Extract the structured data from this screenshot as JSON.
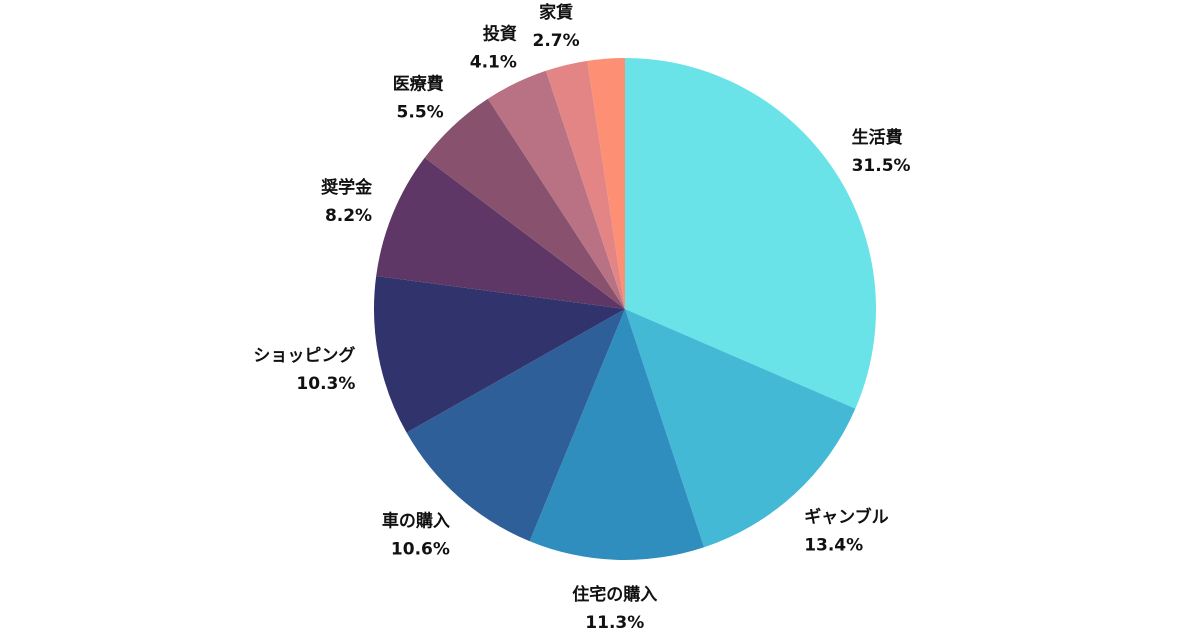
{
  "chart_data": {
    "type": "pie",
    "title": "",
    "start_angle_deg": 0,
    "direction": "clockwise",
    "slices": [
      {
        "label": "生活費",
        "value": 31.5,
        "percent_text": "31.5%",
        "color": "#6ae3e8"
      },
      {
        "label": "ギャンブル",
        "value": 13.4,
        "percent_text": "13.4%",
        "color": "#44b9d6"
      },
      {
        "label": "住宅の購入",
        "value": 11.3,
        "percent_text": "11.3%",
        "color": "#2f8ebe"
      },
      {
        "label": "車の購入",
        "value": 10.6,
        "percent_text": "10.6%",
        "color": "#2e5f98"
      },
      {
        "label": "ショッピング",
        "value": 10.3,
        "percent_text": "10.3%",
        "color": "#31336c"
      },
      {
        "label": "奨学金",
        "value": 8.2,
        "percent_text": "8.2%",
        "color": "#5e3766"
      },
      {
        "label": "医療費",
        "value": 5.5,
        "percent_text": "5.5%",
        "color": "#88526f"
      },
      {
        "label": "投資",
        "value": 4.1,
        "percent_text": "4.1%",
        "color": "#b87283"
      },
      {
        "label": "家賃",
        "value": 2.7,
        "percent_text": "2.7%",
        "color": "#e38585"
      },
      {
        "label": "",
        "value": 2.4,
        "percent_text": "",
        "color": "#fc8f74"
      }
    ]
  }
}
